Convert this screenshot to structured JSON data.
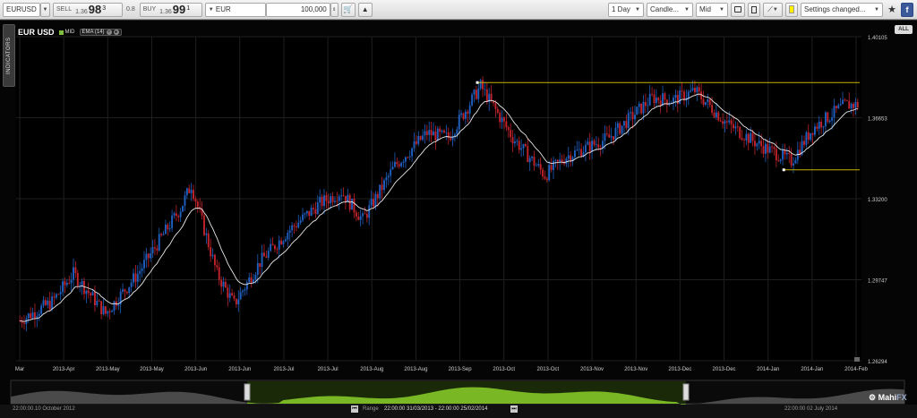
{
  "toolbar": {
    "instrument": "EURUSD",
    "sell_label": "SELL",
    "sell_prefix": "1.36",
    "sell_big": "98",
    "sell_sup": "3",
    "spread": "0.8",
    "buy_label": "BUY",
    "buy_prefix": "1.36",
    "buy_big": "99",
    "buy_sup": "1",
    "currency": "EUR",
    "amount": "100,000",
    "timeframe": "1 Day",
    "chart_type": "Candle...",
    "price_mode": "Mid",
    "settings": "Settings changed..."
  },
  "chart": {
    "symbol": "EUR USD",
    "mid_label": "MID",
    "ema_label": "EMA (14)",
    "indicators_tab": "INDICATORS",
    "all_label": "ALL",
    "close_glyph": "×"
  },
  "footer": {
    "left_time": "22:00:00.10 October 2012",
    "range_label": "Range",
    "range_value": "22:00:00 31/03/2013 - 22:00:00 25/02/2014",
    "right_time": "22:00:00 02 July 2014",
    "brand_main": "Mahi",
    "brand_accent": "FX"
  },
  "chart_data": {
    "type": "candlestick",
    "y_ticks": [
      "1.40105",
      "1.36653",
      "1.33200",
      "1.29747",
      "1.26294"
    ],
    "ylim": [
      1.26294,
      1.40105
    ],
    "x_ticks": [
      "Mar",
      "2013-Apr",
      "2013-May",
      "2013-May",
      "2013-Jun",
      "2013-Jun",
      "2013-Jul",
      "2013-Jul",
      "2013-Aug",
      "2013-Aug",
      "2013-Sep",
      "2013-Oct",
      "2013-Oct",
      "2013-Nov",
      "2013-Nov",
      "2013-Dec",
      "2013-Dec",
      "2014-Jan",
      "2014-Jan",
      "2014-Feb"
    ],
    "ema_period": 14,
    "trend_lines": [
      {
        "name": "resistance",
        "y": 1.3815
      },
      {
        "name": "support",
        "y": 1.3443
      }
    ],
    "colors": {
      "up": "#1f5fbf",
      "down": "#c0232b",
      "ema": "#e8e8e8",
      "trend": "#c8b400",
      "grid": "#1f1f1f"
    }
  }
}
